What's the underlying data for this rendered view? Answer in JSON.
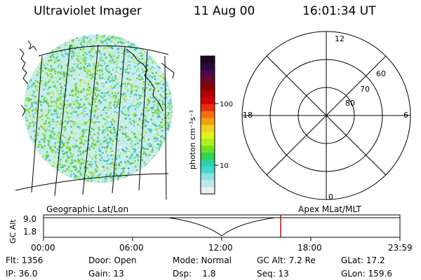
{
  "header": {
    "instrument": "Ultraviolet Imager",
    "date": "11 Aug 00",
    "time": "16:01:34 UT"
  },
  "colorbar": {
    "unit_label": "photon cm⁻²s⁻¹",
    "ticks": [
      "100",
      "10"
    ],
    "colors": [
      "#1a0a1f",
      "#2a0a3a",
      "#4a0a4a",
      "#6a0a2a",
      "#8a0000",
      "#b00000",
      "#d00010",
      "#e83010",
      "#f07010",
      "#f0a010",
      "#f0d020",
      "#e0f020",
      "#b0f020",
      "#70e020",
      "#30d050",
      "#30d0a0",
      "#40d8d0",
      "#90e0e0",
      "#c0e8e8",
      "#e8f0f0"
    ]
  },
  "polar": {
    "labels": {
      "top": "12",
      "bottom": "0",
      "left": "18",
      "right": "6"
    },
    "rings": [
      "60",
      "70",
      "80"
    ]
  },
  "timeline": {
    "left_caption": "Geographic Lat/Lon",
    "right_caption": "Apex MLat/MLT",
    "y_axis_label": "GC Alt",
    "y_ticks": [
      "9.0",
      "1.8"
    ],
    "x_ticks": [
      "00:00",
      "06:00",
      "12:00",
      "18:00",
      "23:59"
    ],
    "current_marker_color": "#cc0000"
  },
  "status": {
    "flt_label": "Flt:",
    "flt_value": "1356",
    "ip_label": "IP:",
    "ip_value": "36.0",
    "door_label": "Door:",
    "door_value": "Open",
    "gain_label": "Gain:",
    "gain_value": "13",
    "mode_label": "Mode:",
    "mode_value": "Normal",
    "dsp_label": "Dsp:",
    "dsp_value": "1.8",
    "gcalt_label": "GC Alt:",
    "gcalt_value": "7.2 Re",
    "seq_label": "Seq:",
    "seq_value": "13",
    "glat_label": "GLat:",
    "glat_value": "17.2",
    "glon_label": "GLon:",
    "glon_value": "159.6"
  }
}
